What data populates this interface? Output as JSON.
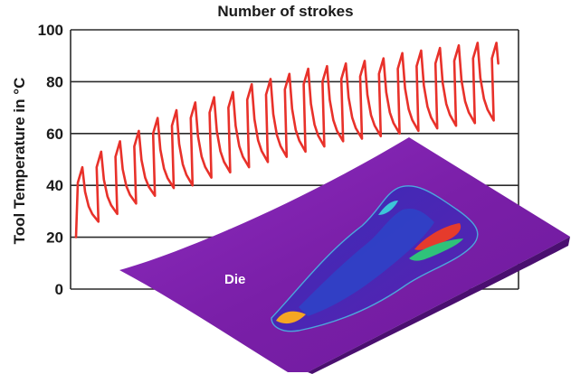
{
  "chart_data": {
    "type": "line",
    "title": "Number of strokes",
    "xlabel": "",
    "ylabel": "Tool Temperature in °C",
    "ylim": [
      0,
      100
    ],
    "yticks": [
      0,
      20,
      40,
      60,
      80,
      100
    ],
    "grid": "horizontal",
    "legend": "none",
    "series": [
      {
        "color": "#e8312a",
        "peaks": [
          47,
          53,
          57,
          61,
          66,
          69,
          72,
          74,
          76,
          79,
          81,
          83,
          85,
          86,
          87,
          88,
          89,
          91,
          92,
          93,
          94,
          95,
          95
        ],
        "troughs": [
          26,
          29,
          33,
          36,
          39,
          40,
          43,
          45,
          47,
          49,
          51,
          53,
          55,
          57,
          58,
          59,
          60,
          61,
          62,
          63,
          64,
          65
        ]
      }
    ]
  },
  "annotation": {
    "die_label": "Die"
  },
  "colors": {
    "line": "#e8312a",
    "grid": "#2b2b2b",
    "die_surface": "#7a1fa8"
  }
}
